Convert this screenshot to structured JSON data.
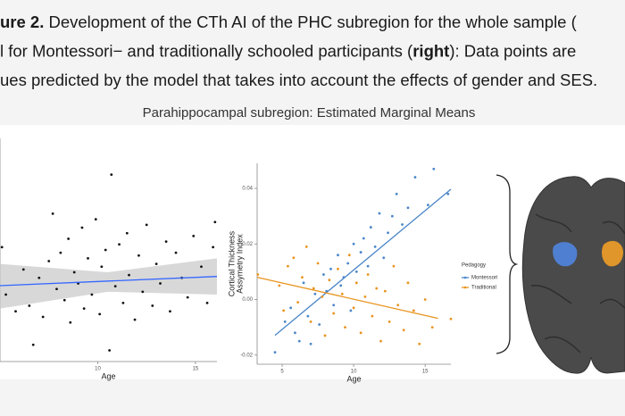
{
  "caption": {
    "lines": [
      [
        {
          "text": "ure 2.",
          "bold": true
        },
        {
          "text": " Development of the CTh AI of the PHC subregion for the whole sample (",
          "bold": false
        }
      ],
      [
        {
          "text": "l for Montessori− and traditionally schooled participants (",
          "bold": false
        },
        {
          "text": "right",
          "bold": true
        },
        {
          "text": "): Data points are",
          "bold": false
        }
      ],
      [
        {
          "text": "ues predicted by the model that takes into account the effects of gender and SES.",
          "bold": false
        }
      ]
    ]
  },
  "figure_title": "Parahippocampal subregion: Estimated Marginal Means",
  "chart_data": [
    {
      "type": "scatter",
      "xlabel": "Age",
      "xlim": [
        5,
        16.1
      ],
      "ylim": [
        -0.03,
        0.05
      ],
      "xticks": [
        10,
        15
      ],
      "series": [
        {
          "color": "#111111",
          "fit_color": "#3366ff",
          "band_color": "#c8c8c8",
          "x": [
            5.1,
            5.3,
            5.8,
            6.2,
            6.5,
            6.7,
            7.0,
            7.2,
            7.5,
            7.7,
            7.9,
            8.1,
            8.3,
            8.5,
            8.6,
            8.8,
            9.0,
            9.2,
            9.3,
            9.5,
            9.7,
            9.9,
            10.1,
            10.2,
            10.4,
            10.6,
            10.7,
            10.9,
            11.1,
            11.3,
            11.5,
            11.6,
            11.9,
            12.1,
            12.3,
            12.5,
            12.8,
            13.0,
            13.2,
            13.5,
            13.7,
            14.0,
            14.3,
            14.6,
            14.9,
            15.3,
            15.6,
            15.9,
            16.0
          ],
          "values": [
            0.011,
            -0.006,
            -0.012,
            0.003,
            -0.01,
            -0.024,
            0.0,
            -0.014,
            0.006,
            0.023,
            -0.004,
            0.009,
            -0.008,
            0.014,
            -0.016,
            0.002,
            -0.002,
            0.018,
            -0.011,
            0.007,
            -0.006,
            0.021,
            -0.013,
            0.004,
            0.01,
            -0.026,
            0.037,
            -0.003,
            0.012,
            -0.009,
            0.016,
            0.001,
            -0.015,
            0.008,
            -0.005,
            0.019,
            -0.01,
            0.005,
            -0.002,
            0.013,
            -0.012,
            0.009,
            0.0,
            -0.007,
            0.015,
            0.004,
            -0.009,
            0.011,
            0.02
          ],
          "fit": {
            "x": [
              5,
              16.1
            ],
            "values": [
              -0.0028,
              0.0005
            ]
          },
          "band": {
            "x": [
              5,
              10.5,
              16.1
            ],
            "lower": [
              -0.011,
              -0.005,
              -0.006
            ],
            "upper": [
              0.005,
              0.002,
              0.007
            ]
          }
        }
      ]
    },
    {
      "type": "scatter",
      "xlabel": "Age",
      "ylabel_lines": [
        "Cortical Thickness",
        "Assymetry Index"
      ],
      "xlim": [
        3.25,
        16.8
      ],
      "ylim": [
        -0.0233,
        0.049
      ],
      "xticks": [
        5,
        10,
        15
      ],
      "yticks": [
        -0.02,
        {
          "value": 0,
          "label": "0.00"
        },
        0.02,
        0.04
      ],
      "legend_title": "Pedagogy",
      "series": [
        {
          "name": "Montessori",
          "color": "#4a86c8",
          "x": [
            4.5,
            5.2,
            5.6,
            5.9,
            6.2,
            6.5,
            6.8,
            7.0,
            7.3,
            7.6,
            7.9,
            8.1,
            8.4,
            8.6,
            8.9,
            9.1,
            9.3,
            9.6,
            9.8,
            10.0,
            10.2,
            10.5,
            10.7,
            11.0,
            11.2,
            11.5,
            11.8,
            12.1,
            12.4,
            12.7,
            13.0,
            13.4,
            13.8,
            14.3,
            15.2,
            15.6,
            16.6
          ],
          "values": [
            -0.019,
            -0.008,
            -0.003,
            -0.012,
            -0.015,
            0.006,
            -0.006,
            -0.016,
            0.002,
            -0.009,
            0.009,
            0.003,
            0.011,
            -0.002,
            0.016,
            0.005,
            0.008,
            0.013,
            -0.004,
            0.02,
            0.01,
            0.017,
            0.022,
            0.012,
            0.026,
            0.019,
            0.031,
            0.015,
            0.024,
            0.03,
            0.038,
            0.027,
            0.033,
            0.044,
            0.034,
            0.047,
            0.038
          ],
          "fit": {
            "x": [
              4.5,
              16.8
            ],
            "values": [
              -0.0129,
              0.0397
            ]
          }
        },
        {
          "name": "Traditional",
          "color": "#e8941f",
          "x": [
            3.3,
            4.8,
            5.1,
            5.4,
            5.8,
            6.1,
            6.4,
            6.7,
            7.0,
            7.2,
            7.5,
            7.8,
            8.0,
            8.3,
            8.6,
            8.9,
            9.2,
            9.4,
            9.7,
            10.0,
            10.2,
            10.5,
            10.8,
            11.0,
            11.3,
            11.6,
            11.9,
            12.2,
            12.5,
            12.8,
            13.1,
            13.5,
            13.8,
            14.2,
            14.6,
            15.0,
            15.5,
            16.8
          ],
          "values": [
            0.009,
            0.005,
            -0.004,
            0.012,
            0.015,
            -0.001,
            0.008,
            0.019,
            -0.008,
            0.004,
            0.013,
            0.001,
            -0.013,
            0.007,
            -0.005,
            0.011,
            0.002,
            -0.01,
            0.016,
            -0.003,
            0.006,
            -0.012,
            0.001,
            0.009,
            -0.006,
            0.004,
            -0.015,
            0.003,
            -0.008,
            0.012,
            -0.002,
            -0.011,
            0.006,
            -0.004,
            -0.016,
            0.0,
            -0.01,
            -0.007
          ],
          "fit": {
            "x": [
              3.25,
              15.9
            ],
            "values": [
              0.008,
              -0.0068
            ]
          }
        }
      ]
    }
  ]
}
